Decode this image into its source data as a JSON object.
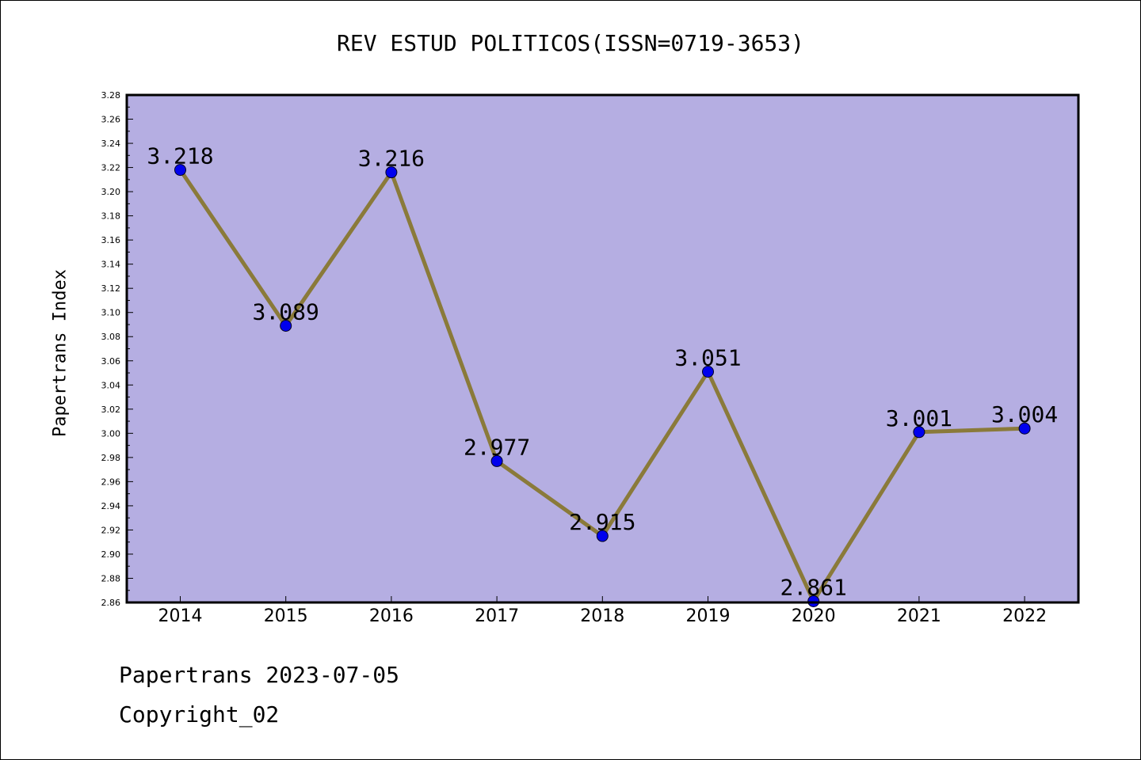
{
  "chart_data": {
    "type": "line",
    "title": "REV ESTUD POLITICOS(ISSN=0719-3653)",
    "xlabel": "",
    "ylabel": "Papertrans Index",
    "categories": [
      "2014",
      "2015",
      "2016",
      "2017",
      "2018",
      "2019",
      "2020",
      "2021",
      "2022"
    ],
    "series": [
      {
        "values": [
          3.218,
          3.089,
          3.216,
          2.977,
          2.915,
          3.051,
          2.861,
          3.001,
          3.004
        ]
      }
    ],
    "value_labels": [
      "3.218",
      "3.089",
      "3.216",
      "2.977",
      "2.915",
      "3.051",
      "2.861",
      "3.001",
      "3.004"
    ],
    "ylim": [
      2.86,
      3.28
    ],
    "yticks": [
      "2.86",
      "2.88",
      "2.90",
      "2.92",
      "2.94",
      "2.96",
      "2.98",
      "3.00",
      "3.02",
      "3.04",
      "3.06",
      "3.08",
      "3.10",
      "3.12",
      "3.14",
      "3.16",
      "3.18",
      "3.20",
      "3.22",
      "3.24",
      "3.26",
      "3.28"
    ],
    "grid": false,
    "colors": {
      "plot_bg": "#b5aee2",
      "line": "#8a7a3a",
      "marker": "#0000ee"
    }
  },
  "footer": {
    "line1": "Papertrans 2023-07-05",
    "line2": "Copyright_02"
  }
}
